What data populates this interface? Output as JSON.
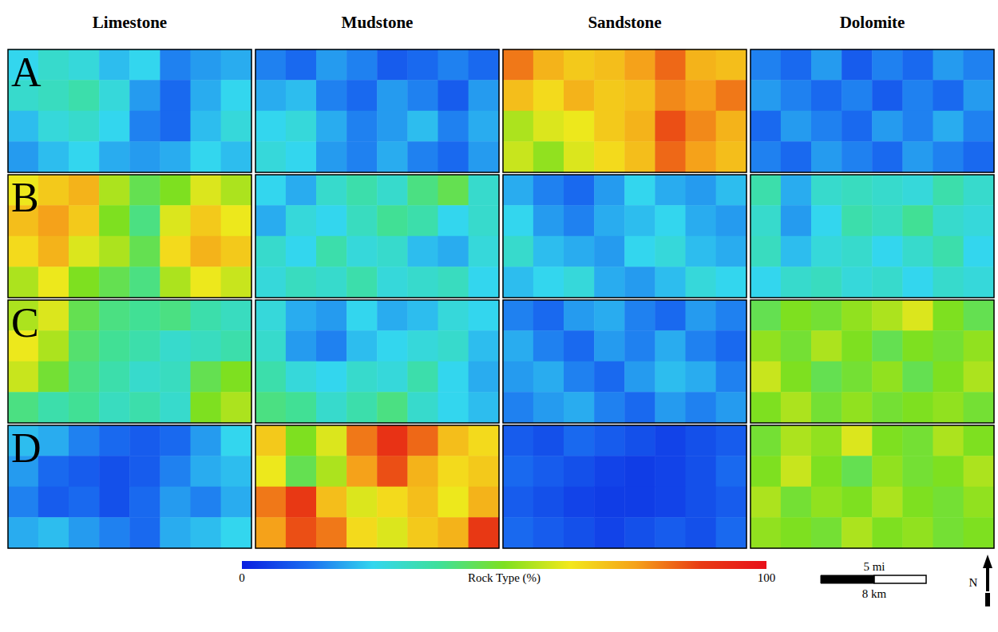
{
  "chart_data": {
    "type": "heatmap",
    "tick_labels": false,
    "columns": [
      "Limestone",
      "Mudstone",
      "Sandstone",
      "Dolomite"
    ],
    "rows": [
      "A",
      "B",
      "C",
      "D"
    ],
    "colors": [
      "#0a1ee0",
      "#1a6cf0",
      "#33d6ee",
      "#3ee09a",
      "#7ee020",
      "#f2e81c",
      "#f5a21a",
      "#e83a14",
      "#e8101a"
    ],
    "color_bar": {
      "label": "Rock Type (%)",
      "range": [
        0,
        100
      ],
      "ticks": [
        0,
        100
      ]
    },
    "scale_bar": {
      "miles_label": "5 mi",
      "km_label": "8 km"
    },
    "north_label": "N",
    "cells": [
      [
        [
          [
            25,
            30,
            28,
            22,
            25,
            15,
            18,
            20
          ],
          [
            30,
            32,
            35,
            28,
            18,
            12,
            20,
            25
          ],
          [
            22,
            28,
            30,
            25,
            15,
            12,
            22,
            28
          ],
          [
            18,
            22,
            25,
            20,
            18,
            20,
            25,
            22
          ]
        ],
        [
          [
            15,
            12,
            18,
            15,
            10,
            12,
            15,
            12
          ],
          [
            20,
            22,
            15,
            12,
            18,
            15,
            10,
            18
          ],
          [
            25,
            28,
            20,
            15,
            18,
            22,
            15,
            20
          ],
          [
            28,
            25,
            18,
            15,
            20,
            15,
            12,
            18
          ]
        ],
        [
          [
            80,
            72,
            68,
            70,
            75,
            82,
            72,
            70
          ],
          [
            70,
            65,
            72,
            68,
            70,
            78,
            75,
            80
          ],
          [
            55,
            60,
            62,
            68,
            72,
            85,
            78,
            72
          ],
          [
            58,
            52,
            60,
            65,
            70,
            82,
            75,
            70
          ]
        ],
        [
          [
            15,
            12,
            18,
            10,
            15,
            12,
            18,
            15
          ],
          [
            18,
            15,
            12,
            15,
            10,
            15,
            12,
            18
          ],
          [
            12,
            18,
            15,
            12,
            18,
            15,
            20,
            15
          ],
          [
            15,
            12,
            18,
            15,
            12,
            18,
            15,
            12
          ]
        ]
      ],
      [
        [
          [
            62,
            68,
            72,
            55,
            45,
            50,
            60,
            55
          ],
          [
            70,
            75,
            68,
            50,
            40,
            60,
            68,
            62
          ],
          [
            65,
            72,
            60,
            55,
            45,
            65,
            72,
            68
          ],
          [
            55,
            62,
            50,
            45,
            40,
            55,
            62,
            58
          ]
        ],
        [
          [
            25,
            20,
            30,
            35,
            30,
            40,
            45,
            30
          ],
          [
            20,
            28,
            25,
            32,
            38,
            35,
            25,
            30
          ],
          [
            30,
            25,
            35,
            28,
            30,
            22,
            20,
            28
          ],
          [
            28,
            32,
            30,
            35,
            28,
            30,
            32,
            25
          ]
        ],
        [
          [
            20,
            15,
            12,
            18,
            25,
            20,
            18,
            22
          ],
          [
            25,
            18,
            15,
            20,
            22,
            25,
            20,
            18
          ],
          [
            30,
            22,
            20,
            18,
            25,
            28,
            22,
            20
          ],
          [
            22,
            25,
            28,
            20,
            18,
            22,
            28,
            25
          ]
        ],
        [
          [
            35,
            20,
            30,
            32,
            30,
            28,
            35,
            30
          ],
          [
            30,
            18,
            25,
            35,
            32,
            38,
            30,
            28
          ],
          [
            32,
            22,
            28,
            30,
            25,
            30,
            35,
            25
          ],
          [
            25,
            30,
            32,
            28,
            30,
            25,
            30,
            28
          ]
        ]
      ],
      [
        [
          [
            55,
            60,
            45,
            40,
            38,
            40,
            35,
            32
          ],
          [
            62,
            55,
            42,
            38,
            35,
            30,
            32,
            35
          ],
          [
            58,
            48,
            40,
            35,
            30,
            32,
            45,
            50
          ],
          [
            40,
            35,
            38,
            32,
            35,
            30,
            50,
            55
          ]
        ],
        [
          [
            28,
            20,
            18,
            25,
            20,
            22,
            28,
            25
          ],
          [
            30,
            18,
            15,
            22,
            25,
            28,
            30,
            22
          ],
          [
            35,
            28,
            25,
            30,
            28,
            35,
            25,
            20
          ],
          [
            40,
            38,
            30,
            35,
            40,
            30,
            25,
            22
          ]
        ],
        [
          [
            15,
            12,
            18,
            20,
            15,
            12,
            18,
            15
          ],
          [
            20,
            15,
            12,
            18,
            15,
            20,
            15,
            12
          ],
          [
            18,
            20,
            15,
            12,
            18,
            22,
            20,
            15
          ],
          [
            15,
            18,
            20,
            15,
            12,
            18,
            15,
            18
          ]
        ],
        [
          [
            45,
            50,
            48,
            52,
            55,
            60,
            50,
            45
          ],
          [
            52,
            48,
            55,
            50,
            45,
            50,
            48,
            52
          ],
          [
            58,
            50,
            45,
            48,
            52,
            45,
            50,
            55
          ],
          [
            50,
            55,
            48,
            52,
            48,
            50,
            52,
            48
          ]
        ]
      ],
      [
        [
          [
            22,
            20,
            15,
            12,
            10,
            12,
            18,
            25
          ],
          [
            18,
            12,
            10,
            8,
            10,
            15,
            20,
            22
          ],
          [
            15,
            10,
            12,
            8,
            12,
            18,
            15,
            20
          ],
          [
            20,
            22,
            18,
            15,
            12,
            20,
            22,
            25
          ]
        ],
        [
          [
            68,
            50,
            60,
            80,
            90,
            82,
            70,
            65
          ],
          [
            62,
            45,
            55,
            75,
            85,
            72,
            65,
            68
          ],
          [
            80,
            88,
            70,
            60,
            65,
            70,
            62,
            72
          ],
          [
            75,
            85,
            80,
            65,
            60,
            68,
            72,
            88
          ]
        ],
        [
          [
            10,
            8,
            12,
            10,
            8,
            6,
            8,
            10
          ],
          [
            12,
            10,
            8,
            6,
            5,
            6,
            8,
            12
          ],
          [
            10,
            8,
            6,
            5,
            5,
            6,
            8,
            10
          ],
          [
            12,
            10,
            8,
            6,
            8,
            10,
            8,
            12
          ]
        ],
        [
          [
            48,
            55,
            52,
            60,
            50,
            48,
            55,
            50
          ],
          [
            50,
            58,
            50,
            45,
            52,
            48,
            50,
            55
          ],
          [
            55,
            48,
            52,
            50,
            55,
            50,
            48,
            52
          ],
          [
            52,
            50,
            48,
            55,
            50,
            52,
            48,
            50
          ]
        ]
      ]
    ]
  }
}
